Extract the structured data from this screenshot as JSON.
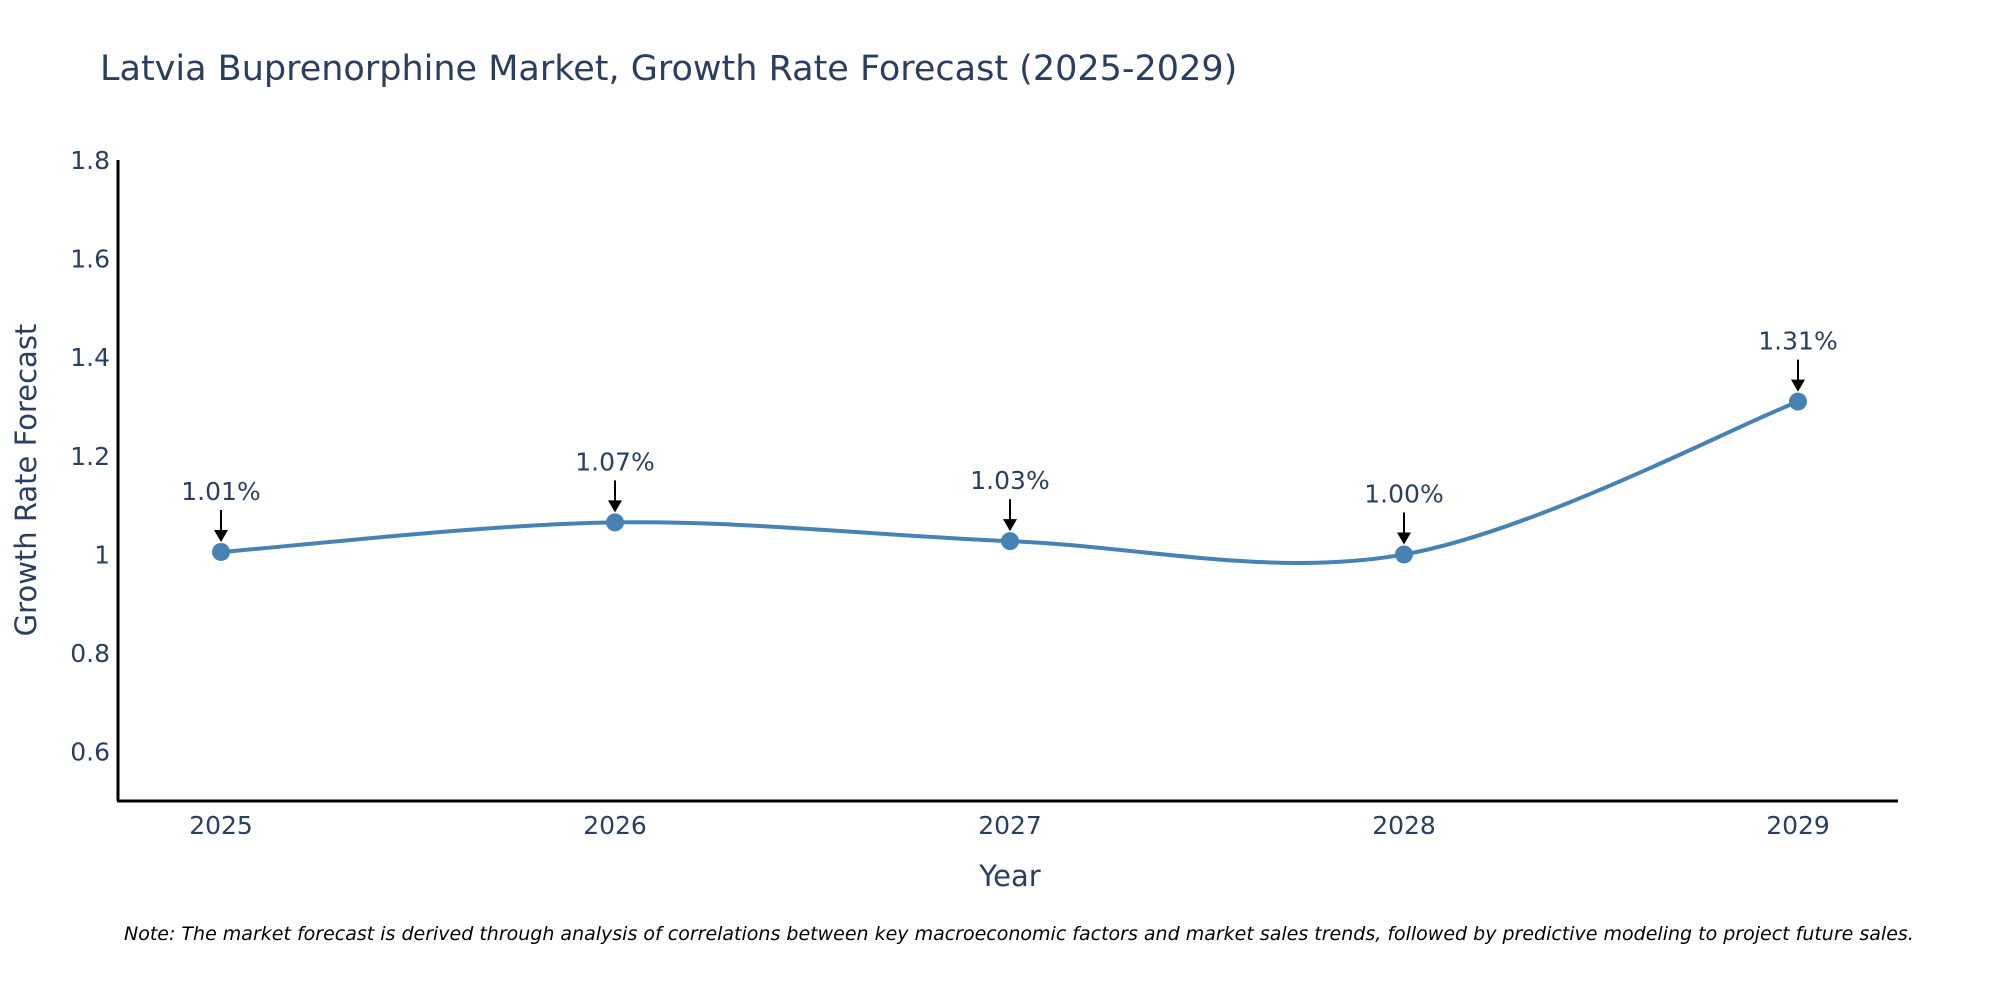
{
  "chart_data": {
    "type": "line",
    "title": "Latvia Buprenorphine Market, Growth Rate Forecast (2025-2029)",
    "xlabel": "Year",
    "ylabel": "Growth Rate Forecast",
    "categories": [
      "2025",
      "2026",
      "2027",
      "2028",
      "2029"
    ],
    "values": [
      1.005,
      1.065,
      1.027,
      1.0,
      1.31
    ],
    "data_labels": [
      "1.01%",
      "1.07%",
      "1.03%",
      "1.00%",
      "1.31%"
    ],
    "ylim": [
      0.5,
      1.8
    ],
    "yticks": [
      0.6,
      0.8,
      1,
      1.2,
      1.4,
      1.6,
      1.8
    ],
    "ytick_labels": [
      "0.6",
      "0.8",
      "1",
      "1.2",
      "1.4",
      "1.6",
      "1.8"
    ],
    "grid": false,
    "line_shape": "spline",
    "series_color": "#4682b4",
    "arrow_color": "#000000",
    "axis_color": "#000000",
    "text_color": "#2a3f5f",
    "note": "Note: The market forecast is derived through analysis of correlations between key macroeconomic factors and market sales trends, followed by predictive modeling to project future sales."
  }
}
